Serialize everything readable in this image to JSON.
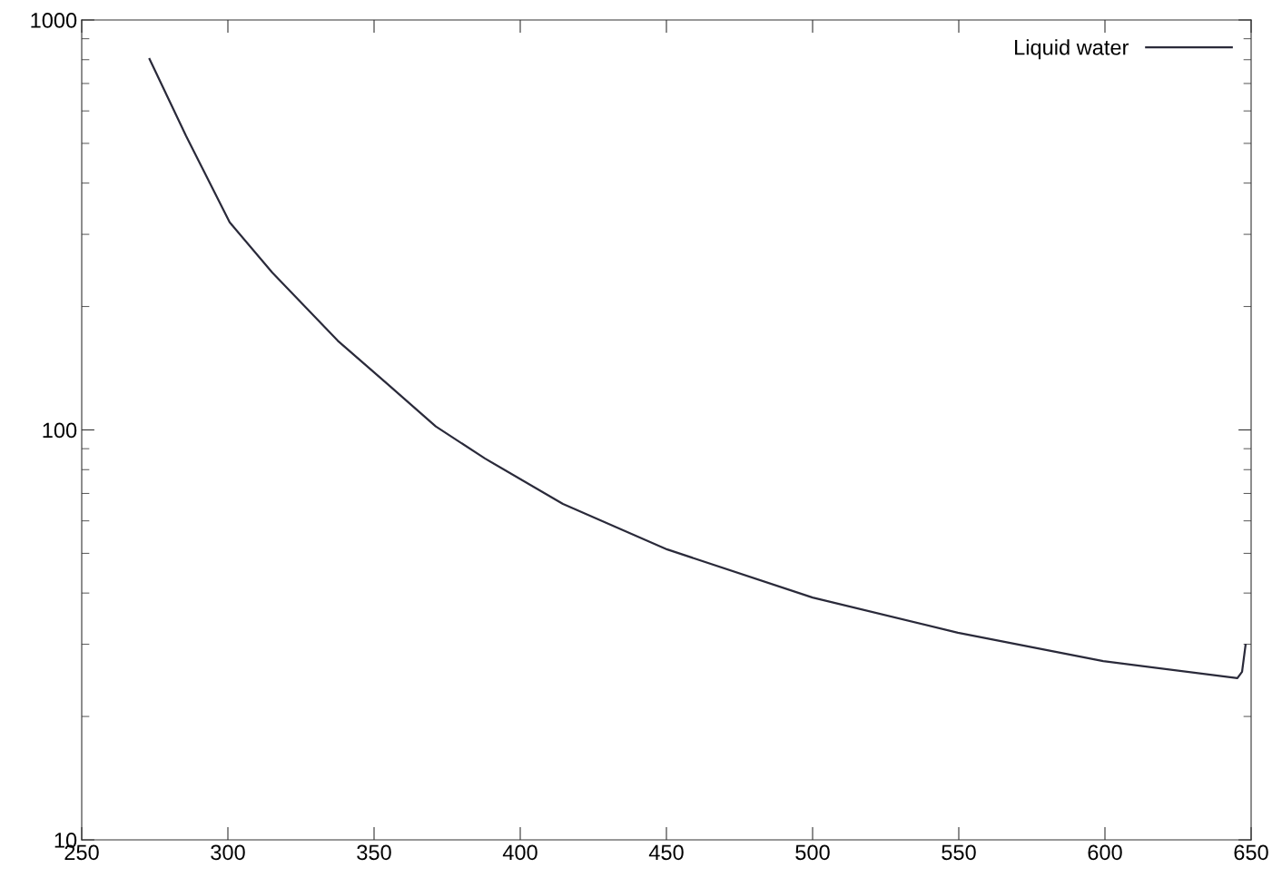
{
  "chart_data": {
    "type": "line",
    "log": "y",
    "grid": false,
    "legend": "top right",
    "xlim": [
      250,
      650
    ],
    "xticks": [
      250,
      300,
      350,
      400,
      450,
      500,
      550,
      600,
      650
    ],
    "ylim": [
      10,
      1000
    ],
    "yticks": [
      10,
      100,
      1000
    ],
    "series": [
      {
        "name": "Liquid water",
        "color": "#2a2a3a",
        "x": [
          273.2,
          285.7,
          300.6,
          315.2,
          337.6,
          354.3,
          371.1,
          387.9,
          414.6,
          450.3,
          500,
          549.7,
          599.4,
          645.3,
          646.9,
          648.1
        ],
        "values": [
          803,
          521,
          321,
          242,
          165,
          130,
          102,
          85.2,
          66.0,
          51.1,
          39.0,
          32.0,
          27.3,
          24.8,
          25.7,
          29.9
        ]
      }
    ]
  }
}
